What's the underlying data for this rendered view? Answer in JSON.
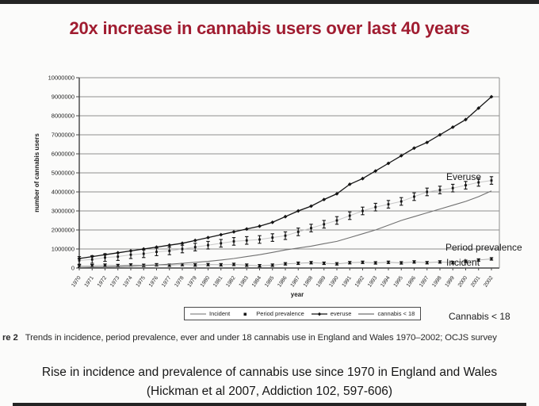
{
  "page": {
    "title": "20x increase in cannabis users over last 40 years",
    "footer_line1": "Rise in incidence and prevalence of cannabis use since 1970 in England and Wales",
    "footer_line2": "(Hickman et al 2007, Addiction 102, 597-606)"
  },
  "figure": {
    "caption_prefix": "re 2",
    "caption_text": "Trends in incidence, period prevalence, ever and under 18 cannabis use in England and Wales 1970–2002; OCJS survey",
    "annotations": {
      "everuse": "Everuse",
      "period_prevalence": "Period prevalence",
      "incident": "Incident",
      "cannabis_lt18": "Cannabis < 18"
    }
  },
  "colors": {
    "title_red": "#a01c30",
    "accent_bar": "#242424",
    "axis": "#444444",
    "gridline": "#8f8f8f"
  },
  "chart_data": {
    "type": "line",
    "title": "",
    "xlabel": "year",
    "ylabel": "number of cannabis users",
    "x": [
      1970,
      1971,
      1972,
      1973,
      1974,
      1975,
      1976,
      1977,
      1978,
      1979,
      1980,
      1981,
      1982,
      1983,
      1984,
      1985,
      1986,
      1987,
      1988,
      1989,
      1990,
      1991,
      1992,
      1993,
      1994,
      1995,
      1996,
      1997,
      1998,
      1999,
      2000,
      2001,
      2002
    ],
    "ylim": [
      0,
      10000000
    ],
    "y_tick_step": 1000000,
    "grid": true,
    "legend_position": "bottom",
    "series": [
      {
        "name": "Incident",
        "swatch": "line",
        "marker": "square",
        "draw_line": true,
        "color": "#151515",
        "line_color": "#b2b2b2",
        "line_width": 1,
        "error": 65000,
        "values": [
          100000,
          120000,
          150000,
          130000,
          160000,
          140000,
          170000,
          150000,
          180000,
          160000,
          180000,
          170000,
          190000,
          150000,
          120000,
          150000,
          220000,
          250000,
          280000,
          250000,
          220000,
          280000,
          300000,
          270000,
          300000,
          270000,
          320000,
          280000,
          320000,
          280000,
          350000,
          420000,
          480000
        ]
      },
      {
        "name": "Period prevalence",
        "swatch": "dot",
        "marker": "square",
        "draw_line": true,
        "color": "#141414",
        "line_color": "#c8c8c8",
        "line_width": 1,
        "error": 200000,
        "values": [
          400000,
          450000,
          550000,
          600000,
          700000,
          750000,
          850000,
          900000,
          1000000,
          1100000,
          1200000,
          1300000,
          1400000,
          1450000,
          1500000,
          1600000,
          1700000,
          1900000,
          2100000,
          2300000,
          2500000,
          2750000,
          3000000,
          3200000,
          3350000,
          3500000,
          3750000,
          4000000,
          4100000,
          4200000,
          4350000,
          4500000,
          4600000
        ]
      },
      {
        "name": "everuse",
        "swatch": "line-diamond",
        "marker": "diamond",
        "draw_line": true,
        "color": "#141414",
        "line_width": 1.3,
        "error": 0,
        "values": [
          500000,
          600000,
          700000,
          800000,
          900000,
          1000000,
          1100000,
          1200000,
          1300000,
          1450000,
          1600000,
          1750000,
          1900000,
          2050000,
          2200000,
          2400000,
          2700000,
          3000000,
          3250000,
          3600000,
          3900000,
          4400000,
          4700000,
          5100000,
          5500000,
          5900000,
          6300000,
          6600000,
          7000000,
          7400000,
          7800000,
          8400000,
          9000000
        ]
      },
      {
        "name": "cannabis < 18",
        "swatch": "line",
        "marker": "none",
        "draw_line": true,
        "color": "#707070",
        "line_width": 1.1,
        "error": 0,
        "values": [
          30000,
          50000,
          60000,
          80000,
          100000,
          130000,
          160000,
          200000,
          250000,
          300000,
          350000,
          420000,
          500000,
          600000,
          700000,
          820000,
          950000,
          1050000,
          1150000,
          1280000,
          1400000,
          1600000,
          1800000,
          2000000,
          2250000,
          2500000,
          2700000,
          2900000,
          3100000,
          3300000,
          3500000,
          3750000,
          4050000
        ]
      }
    ]
  }
}
